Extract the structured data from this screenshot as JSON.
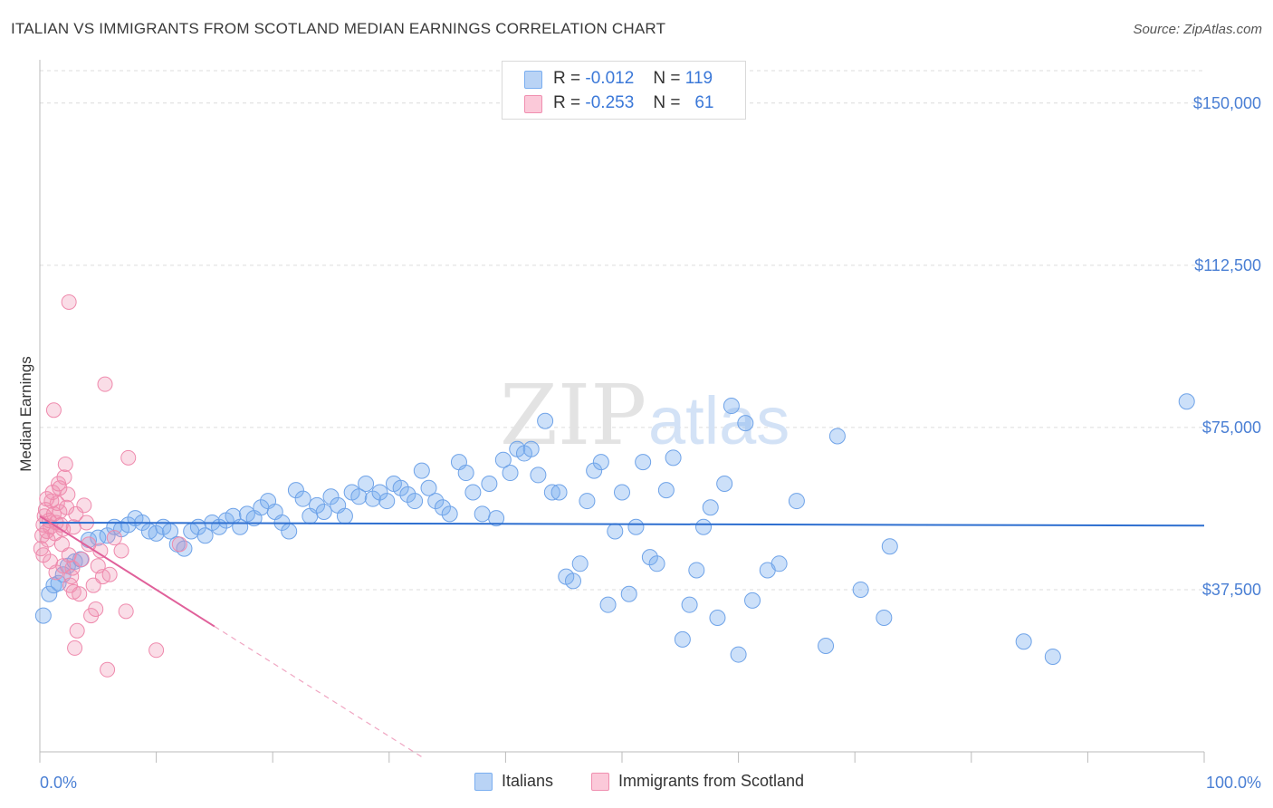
{
  "title": "ITALIAN VS IMMIGRANTS FROM SCOTLAND MEDIAN EARNINGS CORRELATION CHART",
  "source": "Source: ZipAtlas.com",
  "legend": {
    "rows": [
      {
        "r_label": "R =",
        "r_value": "-0.012",
        "n_label": "N =",
        "n_value": "119"
      },
      {
        "r_label": "R =",
        "r_value": "-0.253",
        "n_label": "N =",
        "n_value": "61"
      }
    ]
  },
  "bottom_legend": {
    "italians": "Italians",
    "scotland": "Immigrants from Scotland"
  },
  "colors": {
    "italians": "#7aaef0",
    "scotland": "#f08fb0",
    "blue_line": "#2e6fd0",
    "pink_line": "#e0609a",
    "axis_text": "#4a7fd4"
  },
  "chart_data": {
    "type": "scatter",
    "title": "ITALIAN VS IMMIGRANTS FROM SCOTLAND MEDIAN EARNINGS CORRELATION CHART",
    "xlabel": "",
    "ylabel": "Median Earnings",
    "xlim": [
      0,
      100
    ],
    "ylim": [
      0,
      157500
    ],
    "x_tick_labels": [
      "0.0%",
      "100.0%"
    ],
    "y_ticks": [
      37500,
      75000,
      112500,
      150000
    ],
    "y_tick_labels": [
      "$37,500",
      "$75,000",
      "$112,500",
      "$150,000"
    ],
    "grid": true,
    "watermark": "ZIPatlas",
    "series": [
      {
        "name": "Italians",
        "r": -0.012,
        "n": 119,
        "trend": {
          "x": [
            0,
            100
          ],
          "y": [
            53000,
            52300
          ]
        },
        "points": [
          [
            0.3,
            31500
          ],
          [
            0.8,
            36500
          ],
          [
            1.2,
            38500
          ],
          [
            1.6,
            39000
          ],
          [
            2.0,
            41000
          ],
          [
            2.4,
            43000
          ],
          [
            3.0,
            44000
          ],
          [
            3.5,
            44500
          ],
          [
            4.2,
            49000
          ],
          [
            5.0,
            49500
          ],
          [
            5.8,
            50000
          ],
          [
            6.4,
            52000
          ],
          [
            7.0,
            51500
          ],
          [
            7.6,
            52500
          ],
          [
            8.2,
            54000
          ],
          [
            8.8,
            53000
          ],
          [
            9.4,
            51000
          ],
          [
            10.0,
            50500
          ],
          [
            10.6,
            52000
          ],
          [
            11.2,
            51000
          ],
          [
            11.8,
            48000
          ],
          [
            12.4,
            47000
          ],
          [
            13.0,
            51000
          ],
          [
            13.6,
            52000
          ],
          [
            14.2,
            50000
          ],
          [
            14.8,
            53000
          ],
          [
            15.4,
            52000
          ],
          [
            16.0,
            53500
          ],
          [
            16.6,
            54500
          ],
          [
            17.2,
            52000
          ],
          [
            17.8,
            55000
          ],
          [
            18.4,
            54000
          ],
          [
            19.0,
            56500
          ],
          [
            19.6,
            58000
          ],
          [
            20.2,
            55500
          ],
          [
            20.8,
            53000
          ],
          [
            21.4,
            51000
          ],
          [
            22.0,
            60500
          ],
          [
            22.6,
            58500
          ],
          [
            23.2,
            54500
          ],
          [
            23.8,
            57000
          ],
          [
            24.4,
            55500
          ],
          [
            25.0,
            59000
          ],
          [
            25.6,
            57000
          ],
          [
            26.2,
            54500
          ],
          [
            26.8,
            60000
          ],
          [
            27.4,
            59000
          ],
          [
            28.0,
            62000
          ],
          [
            28.6,
            58500
          ],
          [
            29.2,
            60000
          ],
          [
            29.8,
            58000
          ],
          [
            30.4,
            62000
          ],
          [
            31.0,
            61000
          ],
          [
            31.6,
            59500
          ],
          [
            32.2,
            58000
          ],
          [
            32.8,
            65000
          ],
          [
            33.4,
            61000
          ],
          [
            34.0,
            58000
          ],
          [
            34.6,
            56500
          ],
          [
            35.2,
            55000
          ],
          [
            36.0,
            67000
          ],
          [
            36.6,
            64500
          ],
          [
            37.2,
            60000
          ],
          [
            38.0,
            55000
          ],
          [
            38.6,
            62000
          ],
          [
            39.2,
            54000
          ],
          [
            39.8,
            67500
          ],
          [
            40.4,
            64500
          ],
          [
            41.0,
            70000
          ],
          [
            41.6,
            69000
          ],
          [
            42.2,
            70000
          ],
          [
            42.8,
            64000
          ],
          [
            43.4,
            76500
          ],
          [
            44.0,
            60000
          ],
          [
            44.6,
            60000
          ],
          [
            45.2,
            40500
          ],
          [
            45.8,
            39500
          ],
          [
            46.4,
            43500
          ],
          [
            47.0,
            58000
          ],
          [
            47.6,
            65000
          ],
          [
            48.2,
            67000
          ],
          [
            48.8,
            34000
          ],
          [
            49.4,
            51000
          ],
          [
            50.0,
            60000
          ],
          [
            50.6,
            36500
          ],
          [
            51.2,
            52000
          ],
          [
            51.8,
            67000
          ],
          [
            52.4,
            45000
          ],
          [
            53.0,
            43500
          ],
          [
            53.8,
            60500
          ],
          [
            54.4,
            68000
          ],
          [
            55.2,
            26000
          ],
          [
            55.8,
            34000
          ],
          [
            56.4,
            42000
          ],
          [
            57.0,
            52000
          ],
          [
            57.6,
            56500
          ],
          [
            58.2,
            31000
          ],
          [
            58.8,
            62000
          ],
          [
            59.4,
            80000
          ],
          [
            60.0,
            22500
          ],
          [
            60.6,
            76000
          ],
          [
            61.2,
            35000
          ],
          [
            62.5,
            42000
          ],
          [
            63.5,
            43500
          ],
          [
            65.0,
            58000
          ],
          [
            67.5,
            24500
          ],
          [
            68.5,
            73000
          ],
          [
            70.5,
            37500
          ],
          [
            72.5,
            31000
          ],
          [
            73.0,
            47500
          ],
          [
            84.5,
            25500
          ],
          [
            87.0,
            22000
          ],
          [
            98.5,
            81000
          ]
        ]
      },
      {
        "name": "Immigrants from Scotland",
        "r": -0.253,
        "n": 61,
        "trend": {
          "x": [
            0,
            15
          ],
          "y": [
            54500,
            29000
          ],
          "dashed_x": [
            15,
            33
          ],
          "dashed_y": [
            29000,
            -1500
          ]
        },
        "points": [
          [
            0.1,
            47000
          ],
          [
            0.2,
            50000
          ],
          [
            0.3,
            52500
          ],
          [
            0.4,
            54500
          ],
          [
            0.5,
            56000
          ],
          [
            0.6,
            51000
          ],
          [
            0.7,
            49000
          ],
          [
            0.8,
            53500
          ],
          [
            0.9,
            52000
          ],
          [
            1.0,
            58000
          ],
          [
            1.1,
            60000
          ],
          [
            1.2,
            55000
          ],
          [
            1.3,
            50500
          ],
          [
            1.4,
            53000
          ],
          [
            1.5,
            57500
          ],
          [
            1.6,
            62000
          ],
          [
            1.7,
            55500
          ],
          [
            1.8,
            52500
          ],
          [
            1.9,
            48000
          ],
          [
            2.0,
            51500
          ],
          [
            2.1,
            63500
          ],
          [
            2.2,
            66500
          ],
          [
            2.3,
            56500
          ],
          [
            2.4,
            59500
          ],
          [
            2.5,
            45500
          ],
          [
            2.6,
            38500
          ],
          [
            2.7,
            40500
          ],
          [
            2.8,
            42500
          ],
          [
            2.9,
            37000
          ],
          [
            3.0,
            24000
          ],
          [
            3.2,
            28000
          ],
          [
            3.4,
            36500
          ],
          [
            3.6,
            44500
          ],
          [
            3.8,
            57000
          ],
          [
            4.0,
            53000
          ],
          [
            4.2,
            48000
          ],
          [
            4.4,
            31500
          ],
          [
            4.6,
            38500
          ],
          [
            4.8,
            33000
          ],
          [
            5.0,
            43000
          ],
          [
            5.2,
            46500
          ],
          [
            5.4,
            40500
          ],
          [
            5.6,
            85000
          ],
          [
            5.8,
            19000
          ],
          [
            6.0,
            41000
          ],
          [
            6.4,
            49500
          ],
          [
            7.0,
            46500
          ],
          [
            7.4,
            32500
          ],
          [
            7.6,
            68000
          ],
          [
            10.0,
            23500
          ],
          [
            12.0,
            48000
          ],
          [
            2.5,
            104000
          ],
          [
            1.2,
            79000
          ],
          [
            0.9,
            44000
          ],
          [
            1.7,
            61000
          ],
          [
            2.9,
            52000
          ],
          [
            3.1,
            55000
          ],
          [
            0.3,
            45500
          ],
          [
            0.6,
            58500
          ],
          [
            1.4,
            41500
          ],
          [
            2.0,
            43000
          ]
        ]
      }
    ]
  }
}
